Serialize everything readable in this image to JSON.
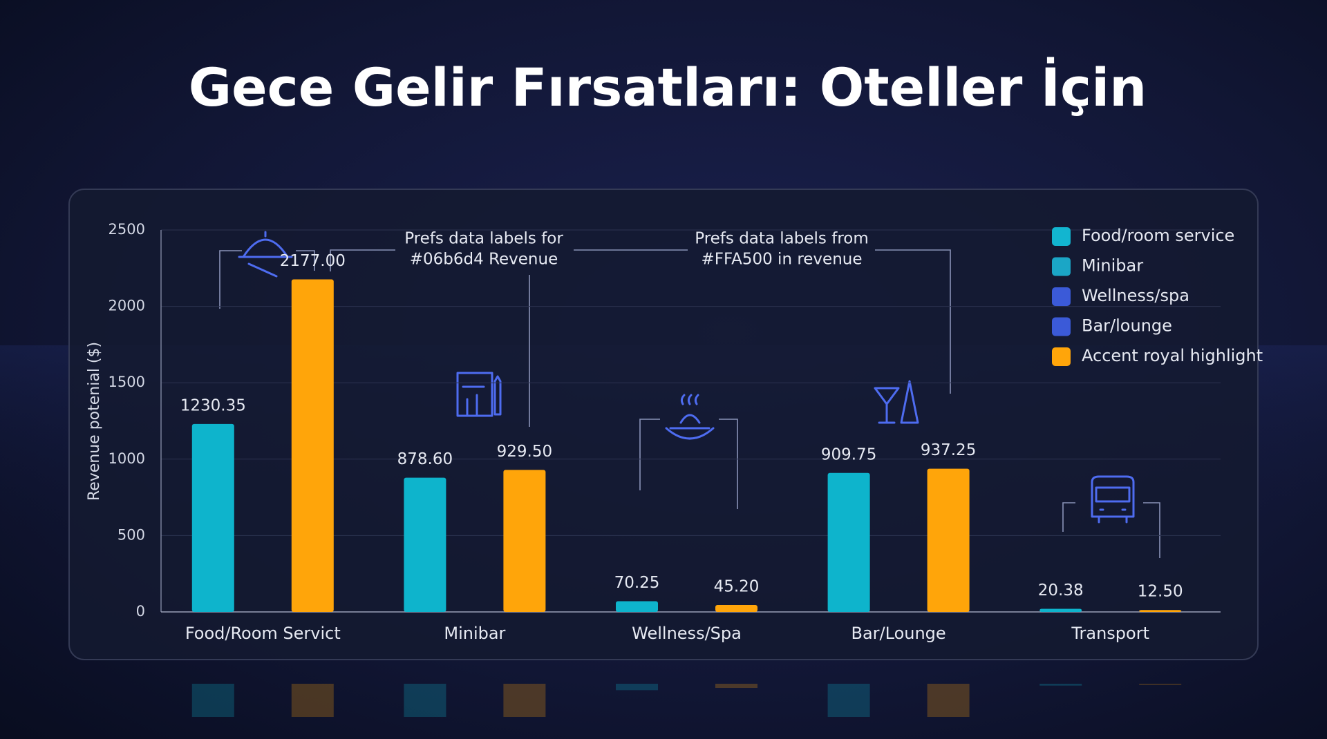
{
  "chart_data": {
    "type": "bar",
    "title": "Gece Gelir Fırsatları: Oteller İçin",
    "y_label": "Revenue potenial ($)",
    "categories": [
      "Food/Room Servict",
      "Minibar",
      "Wellness/Spa",
      "Bar/Lounge",
      "Transport"
    ],
    "series": [
      {
        "color": "#0eb4cc",
        "values": [
          1230.35,
          878.6,
          70.25,
          909.75,
          20.38
        ],
        "value_labels": [
          "1230.35",
          "878.60",
          "70.25",
          "909.75",
          "20.38"
        ]
      },
      {
        "color": "#ffa50a",
        "values": [
          2177,
          929.5,
          45.2,
          937.25,
          12.5
        ],
        "value_labels": [
          "2177.00",
          "929.50",
          "45.20",
          "937.25",
          "12.50"
        ]
      }
    ],
    "ylim": [
      0,
      2500
    ],
    "yticks": [
      0,
      500,
      1000,
      1500,
      2000,
      2500
    ],
    "grid": true,
    "legend": {
      "corner": "top-right",
      "items": [
        {
          "label": "Food/room service",
          "color": "#12b5d0"
        },
        {
          "label": "Minibar",
          "color": "#1ba6c6"
        },
        {
          "label": "Wellness/spa",
          "color": "#3b5ad8"
        },
        {
          "label": "Bar/lounge",
          "color": "#3b5ad8"
        },
        {
          "label": "Accent royal highlight",
          "color": "#ffa50a"
        }
      ]
    },
    "annotations": [
      {
        "lines": [
          "Prefs data labels for",
          "#06b6d4 Revenue"
        ]
      },
      {
        "lines": [
          "Prefs data labels from",
          "#FFA500 in revenue"
        ]
      }
    ]
  }
}
